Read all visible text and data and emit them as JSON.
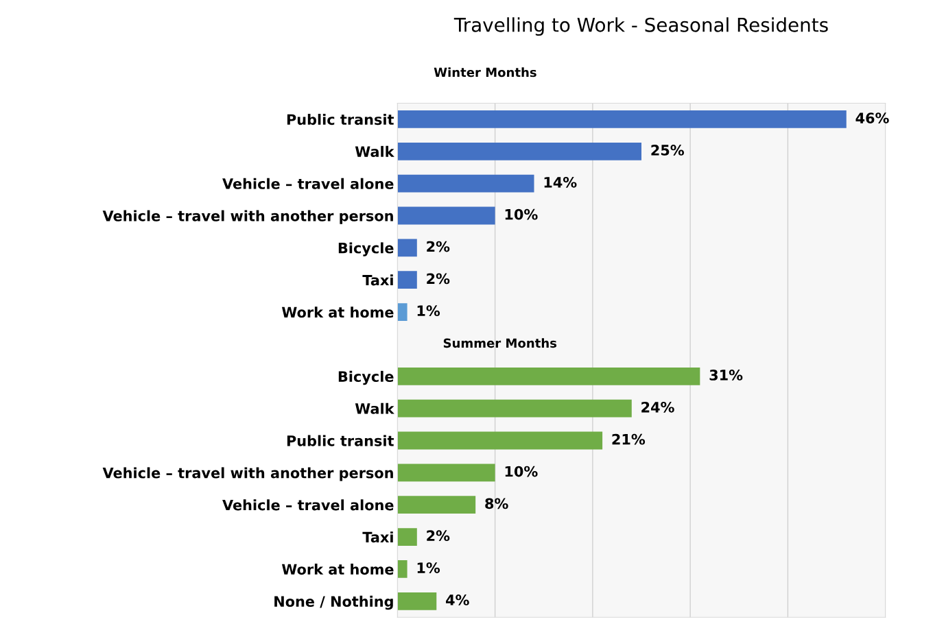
{
  "chart_data": {
    "type": "bar",
    "orientation": "horizontal",
    "title": "Travelling to Work - Seasonal Residents",
    "annotations": [
      "Winter Months",
      "Summer Months"
    ],
    "categories": [
      "Public transit",
      "Walk",
      "Vehicle – travel alone",
      "Vehicle – travel with another person",
      "Bicycle",
      "Taxi",
      "Work at home",
      null,
      "Bicycle",
      "Walk",
      "Public transit",
      "Vehicle – travel with another person",
      "Vehicle – travel alone",
      "Taxi",
      "Work at home",
      "None / Nothing"
    ],
    "values": [
      46,
      25,
      14,
      10,
      2,
      2,
      1,
      null,
      31,
      24,
      21,
      10,
      8,
      2,
      1,
      4
    ],
    "value_labels": [
      "46%",
      "25%",
      "14%",
      "10%",
      "2%",
      "2%",
      "1%",
      null,
      "31%",
      "24%",
      "21%",
      "10%",
      "8%",
      "2%",
      "1%",
      "4%"
    ],
    "colors": [
      "#4472c4",
      "#4472c4",
      "#4472c4",
      "#4472c4",
      "#4472c4",
      "#4472c4",
      "#5b9bd5",
      null,
      "#70ad47",
      "#70ad47",
      "#70ad47",
      "#70ad47",
      "#70ad47",
      "#70ad47",
      "#70ad47",
      "#70ad47"
    ],
    "xlim": [
      0,
      50
    ],
    "xticks": [
      {
        "value": 0,
        "label": null
      },
      {
        "value": 10,
        "label": null
      },
      {
        "value": 20,
        "label": null
      },
      {
        "value": 30,
        "label": null
      },
      {
        "value": 40,
        "label": null
      },
      {
        "value": 50,
        "label": null
      }
    ],
    "grid": "x",
    "legend": false,
    "tick_labels": "y"
  }
}
